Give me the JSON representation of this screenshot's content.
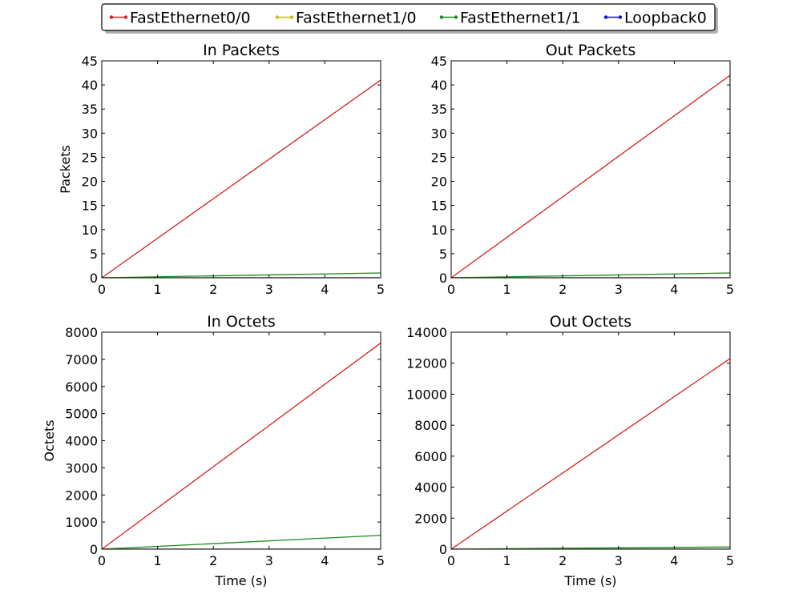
{
  "legend": [
    {
      "name": "FastEthernet0/0",
      "color": "#d62020"
    },
    {
      "name": "FastEthernet1/0",
      "color": "#c8c000"
    },
    {
      "name": "FastEthernet1/1",
      "color": "#1a8a1a"
    },
    {
      "name": "Loopback0",
      "color": "#1010d0"
    }
  ],
  "chart_data": [
    {
      "type": "line",
      "title": "In Packets",
      "xlabel": "",
      "ylabel": "Packets",
      "xlim": [
        0,
        5
      ],
      "ylim": [
        0,
        45
      ],
      "xticks": [
        0,
        1,
        2,
        3,
        4,
        5
      ],
      "yticks": [
        0,
        5,
        10,
        15,
        20,
        25,
        30,
        35,
        40,
        45
      ],
      "x": [
        0,
        5
      ],
      "series": [
        {
          "name": "FastEthernet0/0",
          "values": [
            0,
            41
          ]
        },
        {
          "name": "FastEthernet1/0",
          "values": [
            0,
            0
          ]
        },
        {
          "name": "FastEthernet1/1",
          "values": [
            0,
            1
          ]
        },
        {
          "name": "Loopback0",
          "values": [
            0,
            0
          ]
        }
      ]
    },
    {
      "type": "line",
      "title": "Out Packets",
      "xlabel": "",
      "ylabel": "",
      "xlim": [
        0,
        5
      ],
      "ylim": [
        0,
        45
      ],
      "xticks": [
        0,
        1,
        2,
        3,
        4,
        5
      ],
      "yticks": [
        0,
        5,
        10,
        15,
        20,
        25,
        30,
        35,
        40,
        45
      ],
      "x": [
        0,
        5
      ],
      "series": [
        {
          "name": "FastEthernet0/0",
          "values": [
            0,
            42
          ]
        },
        {
          "name": "FastEthernet1/0",
          "values": [
            0,
            0
          ]
        },
        {
          "name": "FastEthernet1/1",
          "values": [
            0,
            1
          ]
        },
        {
          "name": "Loopback0",
          "values": [
            0,
            0
          ]
        }
      ]
    },
    {
      "type": "line",
      "title": "In Octets",
      "xlabel": "Time (s)",
      "ylabel": "Octets",
      "xlim": [
        0,
        5
      ],
      "ylim": [
        0,
        8000
      ],
      "xticks": [
        0,
        1,
        2,
        3,
        4,
        5
      ],
      "yticks": [
        0,
        1000,
        2000,
        3000,
        4000,
        5000,
        6000,
        7000,
        8000
      ],
      "x": [
        0,
        5
      ],
      "series": [
        {
          "name": "FastEthernet0/0",
          "values": [
            0,
            7600
          ]
        },
        {
          "name": "FastEthernet1/0",
          "values": [
            0,
            0
          ]
        },
        {
          "name": "FastEthernet1/1",
          "values": [
            0,
            510
          ]
        },
        {
          "name": "Loopback0",
          "values": [
            0,
            0
          ]
        }
      ]
    },
    {
      "type": "line",
      "title": "Out Octets",
      "xlabel": "Time (s)",
      "ylabel": "",
      "xlim": [
        0,
        5
      ],
      "ylim": [
        0,
        14000
      ],
      "xticks": [
        0,
        1,
        2,
        3,
        4,
        5
      ],
      "yticks": [
        0,
        2000,
        4000,
        6000,
        8000,
        10000,
        12000,
        14000
      ],
      "x": [
        0,
        5
      ],
      "series": [
        {
          "name": "FastEthernet0/0",
          "values": [
            0,
            12300
          ]
        },
        {
          "name": "FastEthernet1/0",
          "values": [
            0,
            0
          ]
        },
        {
          "name": "FastEthernet1/1",
          "values": [
            0,
            140
          ]
        },
        {
          "name": "Loopback0",
          "values": [
            0,
            0
          ]
        }
      ]
    }
  ]
}
